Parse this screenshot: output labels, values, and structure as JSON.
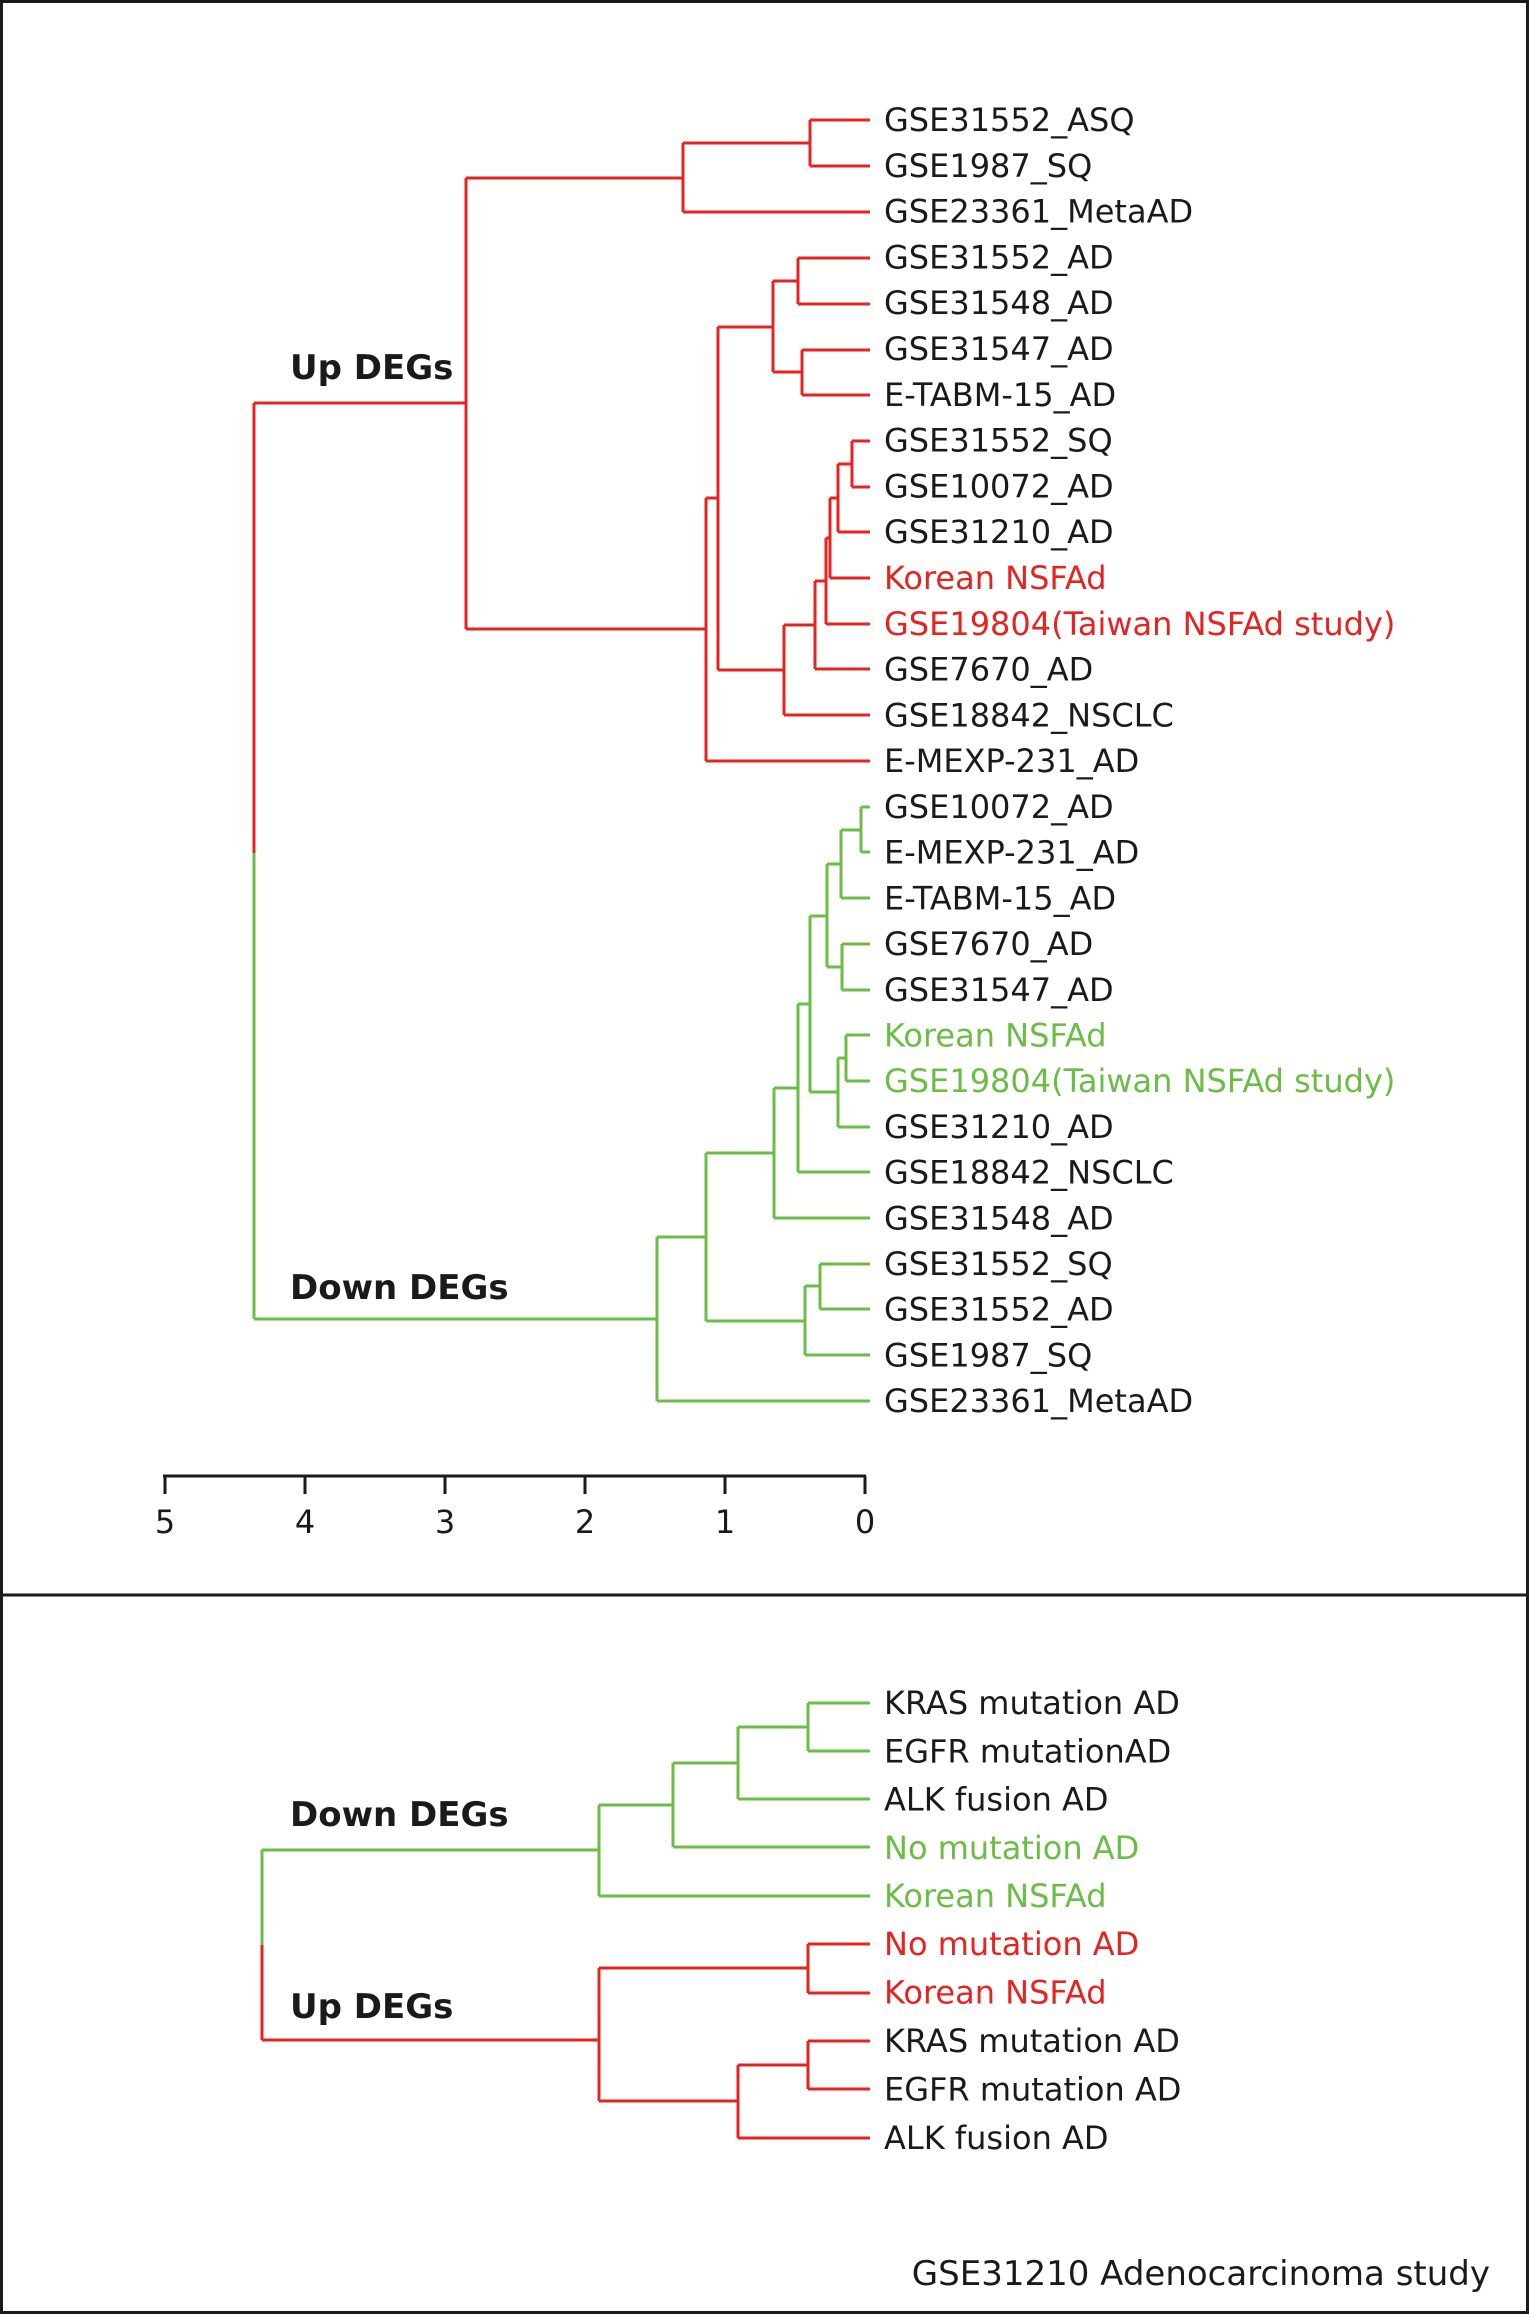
{
  "colors": {
    "up": "#e52421",
    "down": "#6cbd45",
    "text": "#1a1a1a",
    "axis": "#1a1a1a"
  },
  "panel_top": {
    "up_label": "Up DEGs",
    "down_label": "Down DEGs",
    "up_leaves": [
      {
        "label": "GSE31552_ASQ",
        "highlight": false
      },
      {
        "label": "GSE1987_SQ",
        "highlight": false
      },
      {
        "label": "GSE23361_MetaAD",
        "highlight": false
      },
      {
        "label": "GSE31552_AD",
        "highlight": false
      },
      {
        "label": "GSE31548_AD",
        "highlight": false
      },
      {
        "label": "GSE31547_AD",
        "highlight": false
      },
      {
        "label": "E-TABM-15_AD",
        "highlight": false
      },
      {
        "label": "GSE31552_SQ",
        "highlight": false
      },
      {
        "label": "GSE10072_AD",
        "highlight": false
      },
      {
        "label": "GSE31210_AD",
        "highlight": false
      },
      {
        "label": "Korean NSFAd",
        "highlight": true
      },
      {
        "label": "GSE19804(Taiwan NSFAd study)",
        "highlight": true
      },
      {
        "label": "GSE7670_AD",
        "highlight": false
      },
      {
        "label": "GSE18842_NSCLC",
        "highlight": false
      },
      {
        "label": "E-MEXP-231_AD",
        "highlight": false
      }
    ],
    "down_leaves": [
      {
        "label": "GSE10072_AD",
        "highlight": false
      },
      {
        "label": "E-MEXP-231_AD",
        "highlight": false
      },
      {
        "label": "E-TABM-15_AD",
        "highlight": false
      },
      {
        "label": "GSE7670_AD",
        "highlight": false
      },
      {
        "label": "GSE31547_AD",
        "highlight": false
      },
      {
        "label": "Korean NSFAd",
        "highlight": true
      },
      {
        "label": "GSE19804(Taiwan NSFAd study)",
        "highlight": true
      },
      {
        "label": "GSE31210_AD",
        "highlight": false
      },
      {
        "label": "GSE18842_NSCLC",
        "highlight": false
      },
      {
        "label": "GSE31548_AD",
        "highlight": false
      },
      {
        "label": "GSE31552_SQ",
        "highlight": false
      },
      {
        "label": "GSE31552_AD",
        "highlight": false
      },
      {
        "label": "GSE1987_SQ",
        "highlight": false
      },
      {
        "label": "GSE23361_MetaAD",
        "highlight": false
      }
    ],
    "axis_ticks": [
      "5",
      "4",
      "3",
      "2",
      "1",
      "0"
    ]
  },
  "panel_bottom": {
    "up_label": "Up DEGs",
    "down_label": "Down DEGs",
    "down_leaves": [
      {
        "label": "KRAS mutation AD",
        "highlight": false
      },
      {
        "label": "EGFR mutationAD",
        "highlight": false
      },
      {
        "label": "ALK fusion AD",
        "highlight": false
      },
      {
        "label": "No mutation AD",
        "highlight": true
      },
      {
        "label": "Korean NSFAd",
        "highlight": true
      }
    ],
    "up_leaves": [
      {
        "label": "No mutation AD",
        "highlight": true
      },
      {
        "label": "Korean NSFAd",
        "highlight": true
      },
      {
        "label": "KRAS mutation AD",
        "highlight": false
      },
      {
        "label": "EGFR mutation AD",
        "highlight": false
      },
      {
        "label": "ALK fusion  AD",
        "highlight": false
      }
    ],
    "footer": "GSE31210 Adenocarcinoma study"
  }
}
